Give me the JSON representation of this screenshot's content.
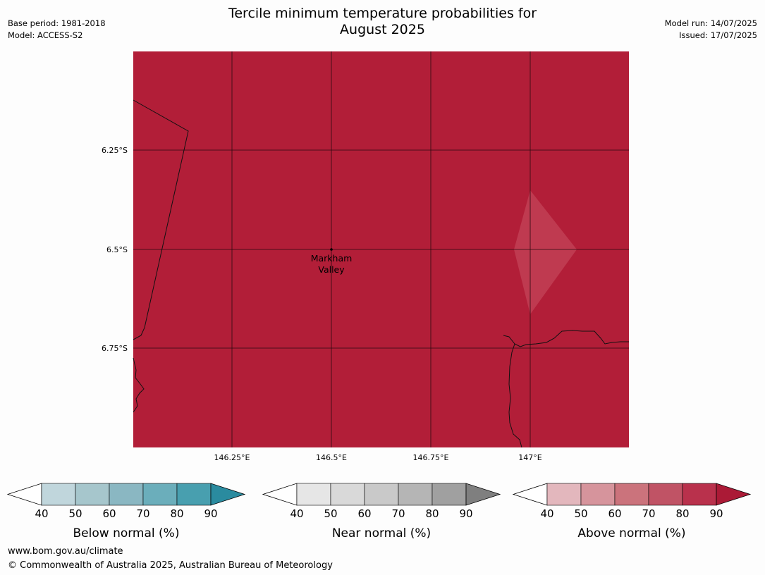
{
  "title_line1": "Tercile minimum temperature probabilities for",
  "title_line2": "August 2025",
  "base_period": "Base period: 1981-2018",
  "model": "Model: ACCESS-S2",
  "model_run": "Model run: 14/07/2025",
  "issued": "Issued: 17/07/2025",
  "map": {
    "fill_color": "#b21e38",
    "lat_labels": [
      "6.25°S",
      "6.5°S",
      "6.75°S"
    ],
    "lon_labels": [
      "146.25°E",
      "146.5°E",
      "146.75°E",
      "147°E"
    ],
    "place_label_line1": "Markham",
    "place_label_line2": "Valley"
  },
  "legends": [
    {
      "title": "Below normal (%)",
      "ticks": [
        "40",
        "50",
        "60",
        "70",
        "80",
        "90"
      ],
      "colors": [
        "#c0d6dc",
        "#a6c6cc",
        "#8ab7c2",
        "#6baebb",
        "#489faf",
        "#2a8b9f"
      ]
    },
    {
      "title": "Near normal (%)",
      "ticks": [
        "40",
        "50",
        "60",
        "70",
        "80",
        "90"
      ],
      "colors": [
        "#e6e6e6",
        "#d9d9d9",
        "#c9c9c9",
        "#b5b5b5",
        "#a0a0a0",
        "#7f7f7f"
      ]
    },
    {
      "title": "Above normal (%)",
      "ticks": [
        "40",
        "50",
        "60",
        "70",
        "80",
        "90"
      ],
      "colors": [
        "#e3b7bd",
        "#d6949c",
        "#cb737c",
        "#c05365",
        "#b9314c",
        "#ab1a36"
      ]
    }
  ],
  "footer_url": "www.bom.gov.au/climate",
  "footer_copyright": "© Commonwealth of Australia 2025, Australian Bureau of Meteorology"
}
